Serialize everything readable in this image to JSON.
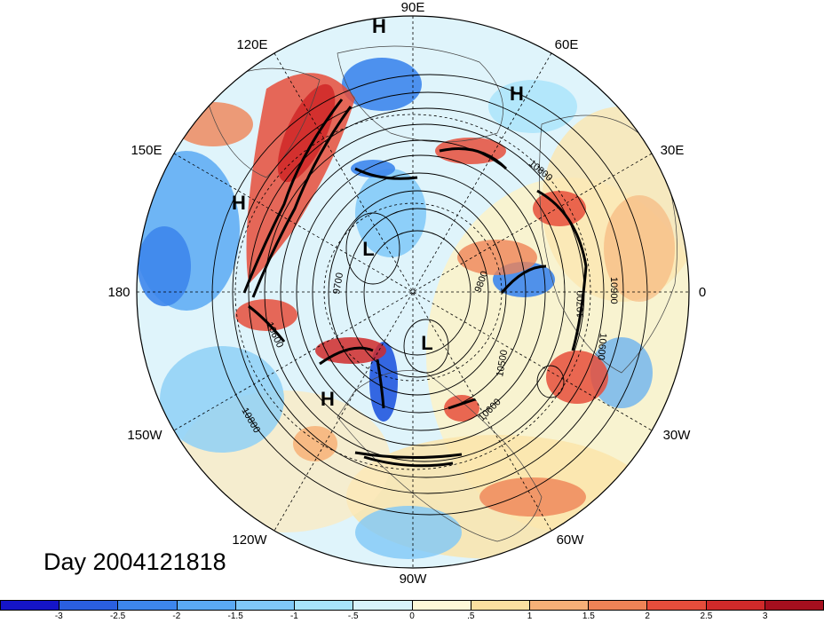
{
  "title": "Day 2004121818",
  "longitude_labels": [
    {
      "id": "90e",
      "text": "90E"
    },
    {
      "id": "60e",
      "text": "60E"
    },
    {
      "id": "120e",
      "text": "120E"
    },
    {
      "id": "150e",
      "text": "150E"
    },
    {
      "id": "30e",
      "text": "30E"
    },
    {
      "id": "180",
      "text": "180"
    },
    {
      "id": "0",
      "text": "0"
    },
    {
      "id": "150w",
      "text": "150W"
    },
    {
      "id": "30w",
      "text": "30W"
    },
    {
      "id": "120w",
      "text": "120W"
    },
    {
      "id": "60w",
      "text": "60W"
    },
    {
      "id": "90w",
      "text": "90W"
    }
  ],
  "pressure_centers": [
    "H",
    "H",
    "H",
    "H",
    "L",
    "L"
  ],
  "contour_labels": [
    "10800",
    "9700",
    "9800",
    "10500",
    "10600",
    "10700",
    "10900",
    "10800",
    "10600",
    "10600"
  ],
  "colorbar": {
    "colors": [
      "#1515c8",
      "#2a5fe0",
      "#3d86ec",
      "#5aa9f3",
      "#7fc8f8",
      "#a8e4fb",
      "#d8f3fc",
      "#fdf8d8",
      "#fbe0a0",
      "#f7b077",
      "#ef8356",
      "#e64d3b",
      "#d02a2a",
      "#a50f1e"
    ],
    "tick_labels": [
      "-3",
      "-2.5",
      "-2",
      "-1.5",
      "-1",
      "-.5",
      "0",
      ".5",
      "1",
      "1.5",
      "2",
      "2.5",
      "3"
    ]
  }
}
